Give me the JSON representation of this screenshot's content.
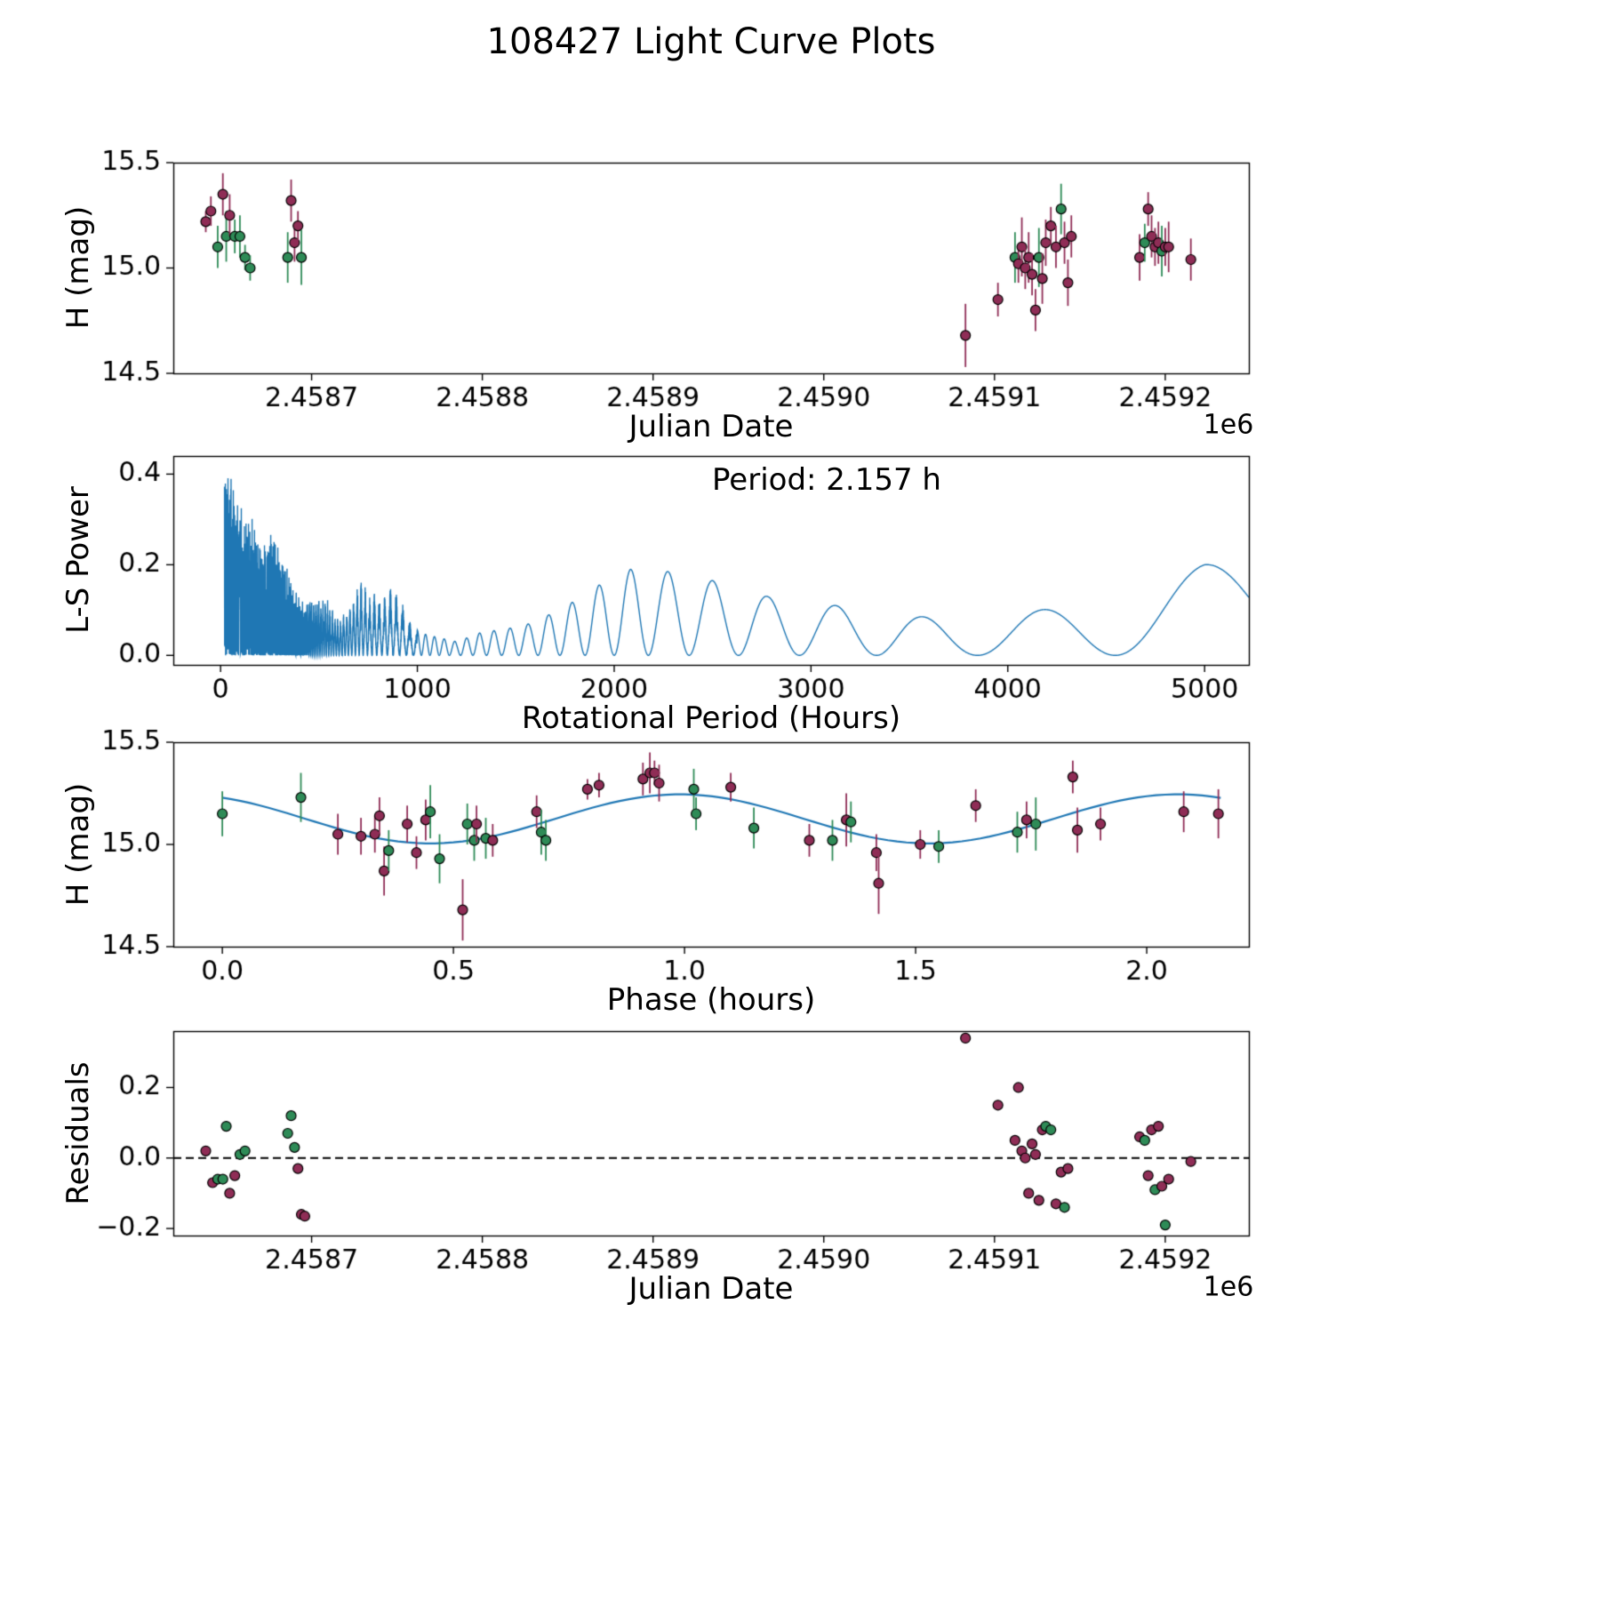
{
  "title": "108427 Light Curve Plots",
  "colors": {
    "maroon": "#8f2d56",
    "green": "#2e8b57",
    "blue": "#1f77b4",
    "black": "#000000"
  },
  "chart_data": [
    {
      "type": "scatter",
      "name": "lightcurve-vs-jd",
      "xlabel": "Julian Date",
      "ylabel": "H (mag)",
      "x_offset": "1e6",
      "xlim": [
        2458619,
        2459249
      ],
      "ylim": [
        14.5,
        15.5
      ],
      "xticks": {
        "values": [
          2458700,
          2458800,
          2458900,
          2459000,
          2459100,
          2459200
        ],
        "labels": [
          "2.4587",
          "2.4588",
          "2.4589",
          "2.4590",
          "2.4591",
          "2.4592"
        ]
      },
      "yticks": {
        "values": [
          14.5,
          15.0,
          15.5
        ],
        "labels": [
          "14.5",
          "15.0",
          "15.5"
        ]
      },
      "points": [
        [
          2458638,
          15.22,
          0.05,
          "m"
        ],
        [
          2458641,
          15.27,
          0.07,
          "m"
        ],
        [
          2458645,
          15.1,
          0.1,
          "g"
        ],
        [
          2458648,
          15.35,
          0.1,
          "m"
        ],
        [
          2458650,
          15.15,
          0.12,
          "g"
        ],
        [
          2458652,
          15.25,
          0.1,
          "m"
        ],
        [
          2458655,
          15.15,
          0.08,
          "g"
        ],
        [
          2458658,
          15.15,
          0.1,
          "g"
        ],
        [
          2458661,
          15.05,
          0.06,
          "g"
        ],
        [
          2458664,
          15.0,
          0.06,
          "g"
        ],
        [
          2458686,
          15.05,
          0.12,
          "g"
        ],
        [
          2458688,
          15.32,
          0.1,
          "m"
        ],
        [
          2458690,
          15.12,
          0.09,
          "m"
        ],
        [
          2458692,
          15.2,
          0.07,
          "m"
        ],
        [
          2458694,
          15.05,
          0.13,
          "g"
        ],
        [
          2459083,
          14.68,
          0.15,
          "m"
        ],
        [
          2459102,
          14.85,
          0.08,
          "m"
        ],
        [
          2459112,
          15.05,
          0.12,
          "g"
        ],
        [
          2459114,
          15.02,
          0.09,
          "m"
        ],
        [
          2459116,
          15.1,
          0.14,
          "m"
        ],
        [
          2459118,
          15.0,
          0.1,
          "m"
        ],
        [
          2459120,
          15.05,
          0.12,
          "m"
        ],
        [
          2459122,
          14.97,
          0.1,
          "m"
        ],
        [
          2459124,
          14.8,
          0.1,
          "m"
        ],
        [
          2459126,
          15.05,
          0.14,
          "g"
        ],
        [
          2459128,
          14.95,
          0.12,
          "m"
        ],
        [
          2459130,
          15.12,
          0.11,
          "m"
        ],
        [
          2459133,
          15.2,
          0.09,
          "m"
        ],
        [
          2459136,
          15.1,
          0.1,
          "m"
        ],
        [
          2459139,
          15.28,
          0.12,
          "g"
        ],
        [
          2459141,
          15.12,
          0.1,
          "m"
        ],
        [
          2459143,
          14.93,
          0.11,
          "m"
        ],
        [
          2459145,
          15.15,
          0.1,
          "m"
        ],
        [
          2459185,
          15.05,
          0.11,
          "m"
        ],
        [
          2459188,
          15.12,
          0.09,
          "g"
        ],
        [
          2459190,
          15.28,
          0.08,
          "m"
        ],
        [
          2459192,
          15.15,
          0.1,
          "m"
        ],
        [
          2459194,
          15.1,
          0.09,
          "m"
        ],
        [
          2459196,
          15.12,
          0.1,
          "m"
        ],
        [
          2459198,
          15.08,
          0.12,
          "g"
        ],
        [
          2459200,
          15.1,
          0.09,
          "m"
        ],
        [
          2459202,
          15.1,
          0.12,
          "m"
        ],
        [
          2459215,
          15.04,
          0.1,
          "m"
        ]
      ]
    },
    {
      "type": "line",
      "name": "lomb-scargle-periodogram",
      "xlabel": "Rotational Period (Hours)",
      "ylabel": "L-S Power",
      "annotation": "Period: 2.157 h",
      "xlim": [
        -240,
        5225
      ],
      "ylim": [
        -0.021,
        0.44
      ],
      "xticks": {
        "values": [
          0,
          1000,
          2000,
          3000,
          4000,
          5000
        ],
        "labels": [
          "0",
          "1000",
          "2000",
          "3000",
          "4000",
          "5000"
        ]
      },
      "yticks": {
        "values": [
          0.0,
          0.2,
          0.4
        ],
        "labels": [
          "0.0",
          "0.2",
          "0.4"
        ]
      },
      "beat_hours": 25000,
      "noise_below_period": 1000,
      "envelope": [
        [
          20,
          0.43
        ],
        [
          60,
          0.4
        ],
        [
          110,
          0.33
        ],
        [
          160,
          0.31
        ],
        [
          210,
          0.24
        ],
        [
          260,
          0.28
        ],
        [
          310,
          0.22
        ],
        [
          360,
          0.17
        ],
        [
          420,
          0.12
        ],
        [
          480,
          0.12
        ],
        [
          540,
          0.13
        ],
        [
          600,
          0.08
        ],
        [
          660,
          0.11
        ],
        [
          710,
          0.17
        ],
        [
          760,
          0.14
        ],
        [
          820,
          0.13
        ],
        [
          870,
          0.16
        ],
        [
          920,
          0.12
        ],
        [
          960,
          0.08
        ],
        [
          1010,
          0.05
        ],
        [
          1100,
          0.04
        ],
        [
          1200,
          0.03
        ],
        [
          1320,
          0.05
        ],
        [
          1470,
          0.06
        ],
        [
          1570,
          0.07
        ],
        [
          1670,
          0.09
        ],
        [
          1800,
          0.12
        ],
        [
          1923,
          0.155
        ],
        [
          2083,
          0.19
        ],
        [
          2273,
          0.185
        ],
        [
          2500,
          0.165
        ],
        [
          2778,
          0.13
        ],
        [
          3125,
          0.11
        ],
        [
          3571,
          0.085
        ],
        [
          3850,
          0.07
        ],
        [
          4167,
          0.1
        ],
        [
          4600,
          0.14
        ],
        [
          5000,
          0.2
        ],
        [
          5225,
          0.21
        ]
      ]
    },
    {
      "type": "scatter",
      "name": "phased-lightcurve",
      "xlabel": "Phase (hours)",
      "ylabel": "H (mag)",
      "xlim": [
        -0.106,
        2.221
      ],
      "ylim": [
        14.5,
        15.5
      ],
      "xticks": {
        "values": [
          0.0,
          0.5,
          1.0,
          1.5,
          2.0
        ],
        "labels": [
          "0.0",
          "0.5",
          "1.0",
          "1.5",
          "2.0"
        ]
      },
      "yticks": {
        "values": [
          14.5,
          15.0,
          15.5
        ],
        "labels": [
          "14.5",
          "15.0",
          "15.5"
        ]
      },
      "fit": {
        "mean": 15.125,
        "amp": 0.12,
        "period": 1.0785,
        "phase0": 0.45,
        "xmin": 0.0,
        "xmax": 2.16
      },
      "points": [
        [
          0.0,
          15.15,
          0.11,
          "g"
        ],
        [
          0.17,
          15.23,
          0.12,
          "g"
        ],
        [
          0.25,
          15.05,
          0.1,
          "m"
        ],
        [
          0.3,
          15.04,
          0.09,
          "m"
        ],
        [
          0.33,
          15.05,
          0.09,
          "m"
        ],
        [
          0.34,
          15.14,
          0.09,
          "m"
        ],
        [
          0.35,
          14.87,
          0.12,
          "m"
        ],
        [
          0.36,
          14.97,
          0.1,
          "g"
        ],
        [
          0.4,
          15.1,
          0.09,
          "m"
        ],
        [
          0.42,
          14.96,
          0.08,
          "m"
        ],
        [
          0.44,
          15.12,
          0.1,
          "m"
        ],
        [
          0.45,
          15.16,
          0.13,
          "g"
        ],
        [
          0.47,
          14.93,
          0.12,
          "g"
        ],
        [
          0.52,
          14.68,
          0.15,
          "m"
        ],
        [
          0.53,
          15.1,
          0.1,
          "g"
        ],
        [
          0.545,
          15.02,
          0.1,
          "g"
        ],
        [
          0.55,
          15.1,
          0.09,
          "m"
        ],
        [
          0.57,
          15.03,
          0.1,
          "g"
        ],
        [
          0.585,
          15.02,
          0.08,
          "m"
        ],
        [
          0.68,
          15.16,
          0.08,
          "m"
        ],
        [
          0.69,
          15.06,
          0.11,
          "g"
        ],
        [
          0.7,
          15.02,
          0.1,
          "g"
        ],
        [
          0.79,
          15.27,
          0.05,
          "m"
        ],
        [
          0.815,
          15.29,
          0.06,
          "m"
        ],
        [
          0.91,
          15.32,
          0.08,
          "m"
        ],
        [
          0.925,
          15.35,
          0.1,
          "m"
        ],
        [
          0.935,
          15.35,
          0.06,
          "m"
        ],
        [
          0.945,
          15.3,
          0.09,
          "m"
        ],
        [
          1.02,
          15.27,
          0.1,
          "g"
        ],
        [
          1.025,
          15.15,
          0.08,
          "g"
        ],
        [
          1.1,
          15.28,
          0.07,
          "m"
        ],
        [
          1.15,
          15.08,
          0.1,
          "g"
        ],
        [
          1.27,
          15.02,
          0.08,
          "m"
        ],
        [
          1.32,
          15.02,
          0.1,
          "g"
        ],
        [
          1.35,
          15.12,
          0.13,
          "m"
        ],
        [
          1.36,
          15.11,
          0.1,
          "g"
        ],
        [
          1.415,
          14.96,
          0.09,
          "m"
        ],
        [
          1.42,
          14.81,
          0.15,
          "m"
        ],
        [
          1.51,
          15.0,
          0.07,
          "m"
        ],
        [
          1.55,
          14.99,
          0.08,
          "g"
        ],
        [
          1.63,
          15.19,
          0.08,
          "m"
        ],
        [
          1.72,
          15.06,
          0.1,
          "g"
        ],
        [
          1.74,
          15.12,
          0.09,
          "m"
        ],
        [
          1.76,
          15.1,
          0.13,
          "g"
        ],
        [
          1.84,
          15.33,
          0.08,
          "m"
        ],
        [
          1.85,
          15.07,
          0.11,
          "m"
        ],
        [
          1.9,
          15.1,
          0.08,
          "m"
        ],
        [
          2.08,
          15.16,
          0.1,
          "m"
        ],
        [
          2.155,
          15.15,
          0.12,
          "m"
        ]
      ]
    },
    {
      "type": "scatter",
      "name": "residuals-vs-jd",
      "xlabel": "Julian Date",
      "ylabel": "Residuals",
      "x_offset": "1e6",
      "xlim": [
        2458619,
        2459249
      ],
      "ylim": [
        -0.22,
        0.36
      ],
      "xticks": {
        "values": [
          2458700,
          2458800,
          2458900,
          2459000,
          2459100,
          2459200
        ],
        "labels": [
          "2.4587",
          "2.4588",
          "2.4589",
          "2.4590",
          "2.4591",
          "2.4592"
        ]
      },
      "yticks": {
        "values": [
          -0.2,
          0.0,
          0.2
        ],
        "labels": [
          "−0.2",
          "0.0",
          "0.2"
        ]
      },
      "zero_line": true,
      "points": [
        [
          2458638,
          0.02,
          "m"
        ],
        [
          2458642,
          -0.07,
          "m"
        ],
        [
          2458645,
          -0.06,
          "g"
        ],
        [
          2458648,
          -0.06,
          "g"
        ],
        [
          2458650,
          0.09,
          "g"
        ],
        [
          2458652,
          -0.1,
          "m"
        ],
        [
          2458655,
          -0.05,
          "m"
        ],
        [
          2458658,
          0.01,
          "g"
        ],
        [
          2458661,
          0.02,
          "g"
        ],
        [
          2458686,
          0.07,
          "g"
        ],
        [
          2458688,
          0.12,
          "g"
        ],
        [
          2458690,
          0.03,
          "g"
        ],
        [
          2458692,
          -0.03,
          "m"
        ],
        [
          2458694,
          -0.16,
          "m"
        ],
        [
          2458696,
          -0.165,
          "m"
        ],
        [
          2459083,
          0.34,
          "m"
        ],
        [
          2459102,
          0.15,
          "m"
        ],
        [
          2459112,
          0.05,
          "m"
        ],
        [
          2459114,
          0.2,
          "m"
        ],
        [
          2459116,
          0.02,
          "m"
        ],
        [
          2459118,
          0.0,
          "m"
        ],
        [
          2459120,
          -0.1,
          "m"
        ],
        [
          2459122,
          0.04,
          "m"
        ],
        [
          2459124,
          0.01,
          "m"
        ],
        [
          2459126,
          -0.12,
          "m"
        ],
        [
          2459128,
          0.08,
          "m"
        ],
        [
          2459130,
          0.09,
          "g"
        ],
        [
          2459133,
          0.08,
          "g"
        ],
        [
          2459136,
          -0.13,
          "m"
        ],
        [
          2459139,
          -0.04,
          "m"
        ],
        [
          2459141,
          -0.14,
          "g"
        ],
        [
          2459143,
          -0.03,
          "m"
        ],
        [
          2459185,
          0.06,
          "m"
        ],
        [
          2459188,
          0.05,
          "g"
        ],
        [
          2459190,
          -0.05,
          "m"
        ],
        [
          2459192,
          0.08,
          "m"
        ],
        [
          2459194,
          -0.09,
          "g"
        ],
        [
          2459196,
          0.09,
          "m"
        ],
        [
          2459198,
          -0.08,
          "m"
        ],
        [
          2459200,
          -0.19,
          "g"
        ],
        [
          2459202,
          -0.06,
          "m"
        ],
        [
          2459215,
          -0.01,
          "m"
        ]
      ]
    }
  ]
}
